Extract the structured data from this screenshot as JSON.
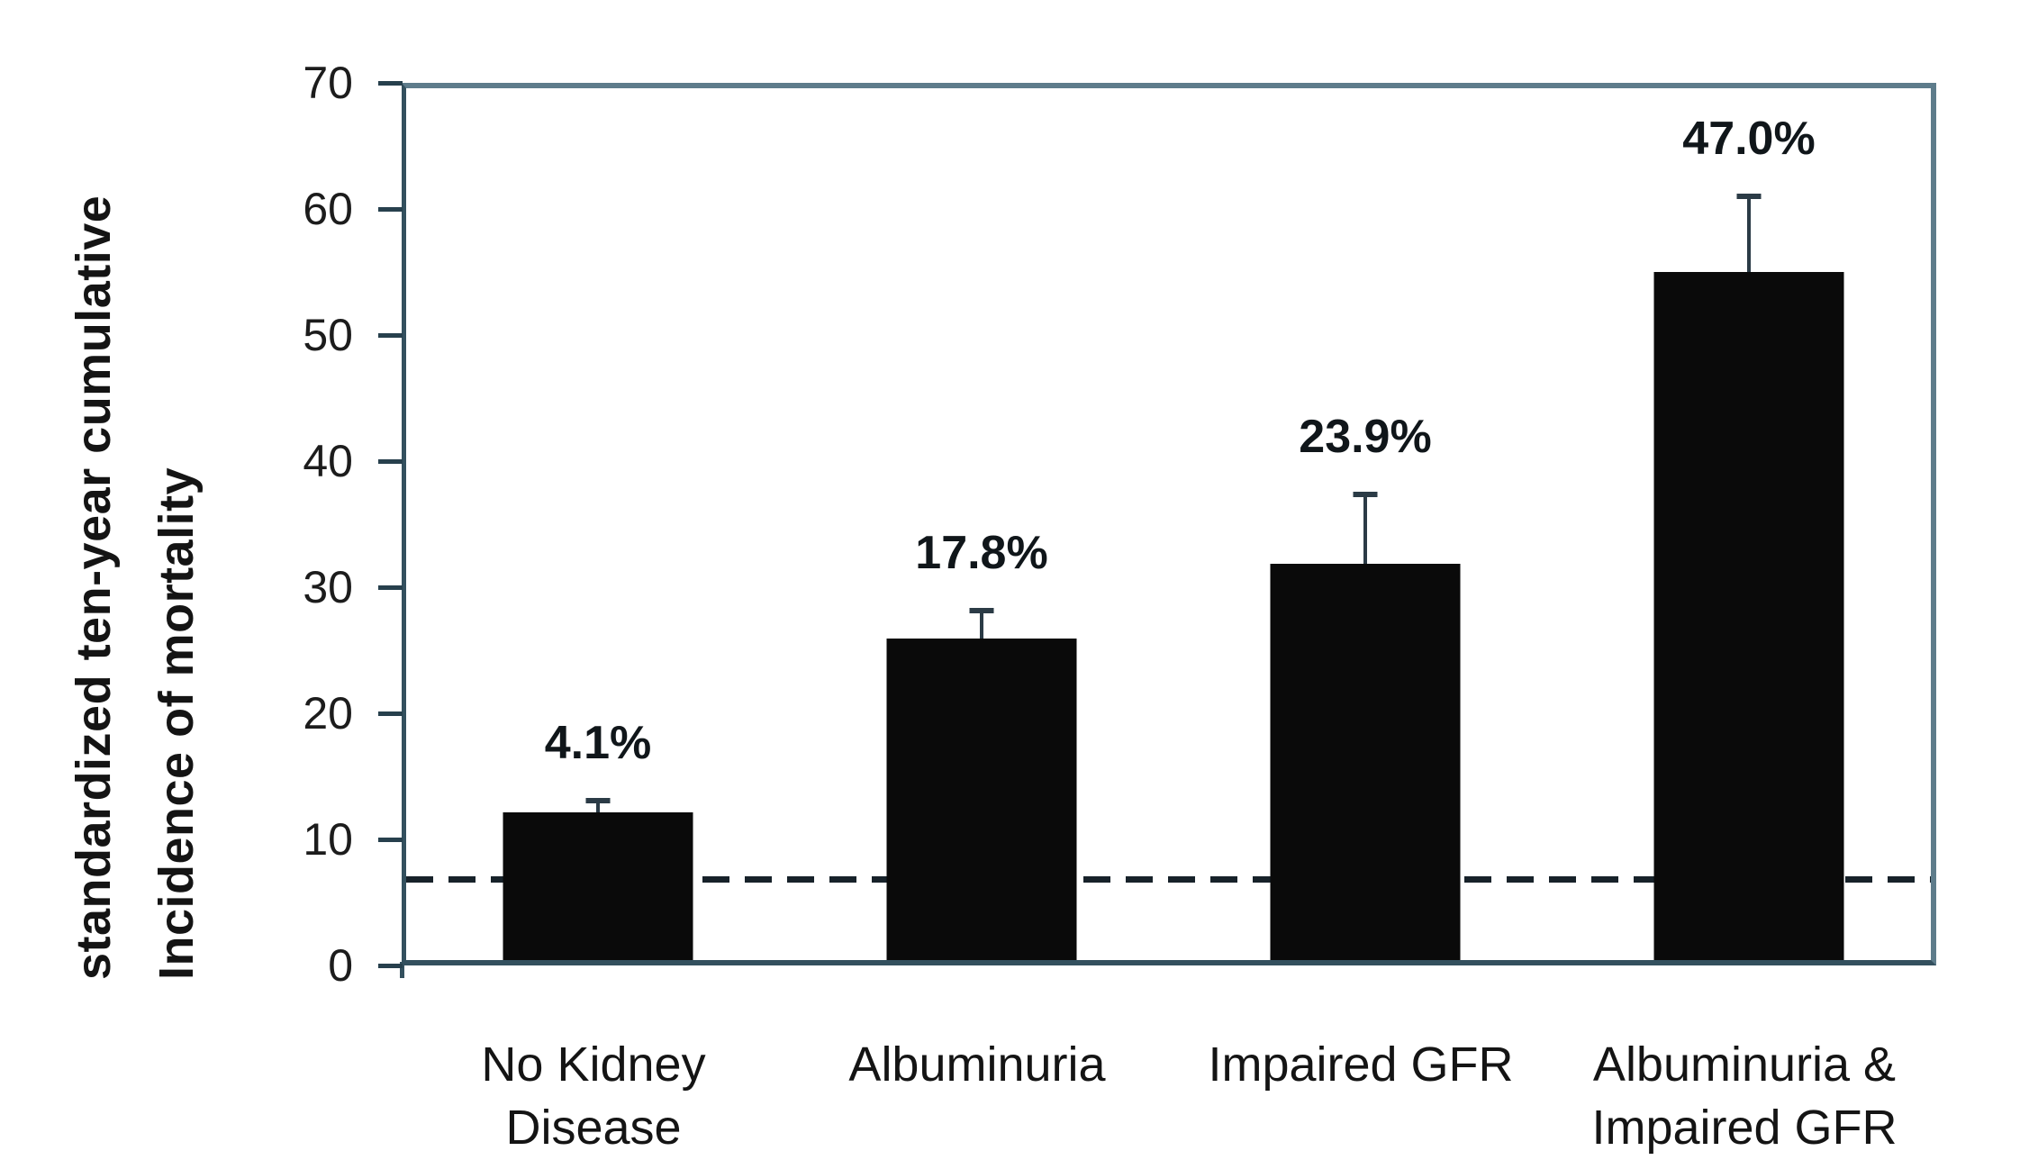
{
  "chart_data": {
    "type": "bar",
    "title": "",
    "ylabel_line1": "standardized ten-year cumulative",
    "ylabel_line2": "Incidence of mortality",
    "xlabel": "",
    "categories": [
      [
        "No Kidney",
        "Disease"
      ],
      [
        "Albuminuria"
      ],
      [
        "Impaired GFR"
      ],
      [
        "Albuminuria &",
        "Impaired GFR"
      ]
    ],
    "values": [
      11.7,
      25.5,
      31.4,
      54.6
    ],
    "error_top": [
      13.5,
      28.6,
      37.8,
      61.4
    ],
    "value_labels": [
      "4.1%",
      "17.8%",
      "23.9%",
      "47.0%"
    ],
    "reference_line": 7.3,
    "y_ticks": [
      0,
      10,
      20,
      30,
      40,
      50,
      60,
      70
    ],
    "ylim": [
      0,
      70
    ],
    "grid": "off",
    "legend": "none",
    "bar_color": "#0a0a0a",
    "error_bar_color": "#2b3b46",
    "frame_color": "#5e7c8b",
    "axis_color": "#33505e",
    "tick_color": "#27404d",
    "reference_line_color": "#17222a",
    "text_color": "#141414",
    "background_color": "#ffffff"
  }
}
